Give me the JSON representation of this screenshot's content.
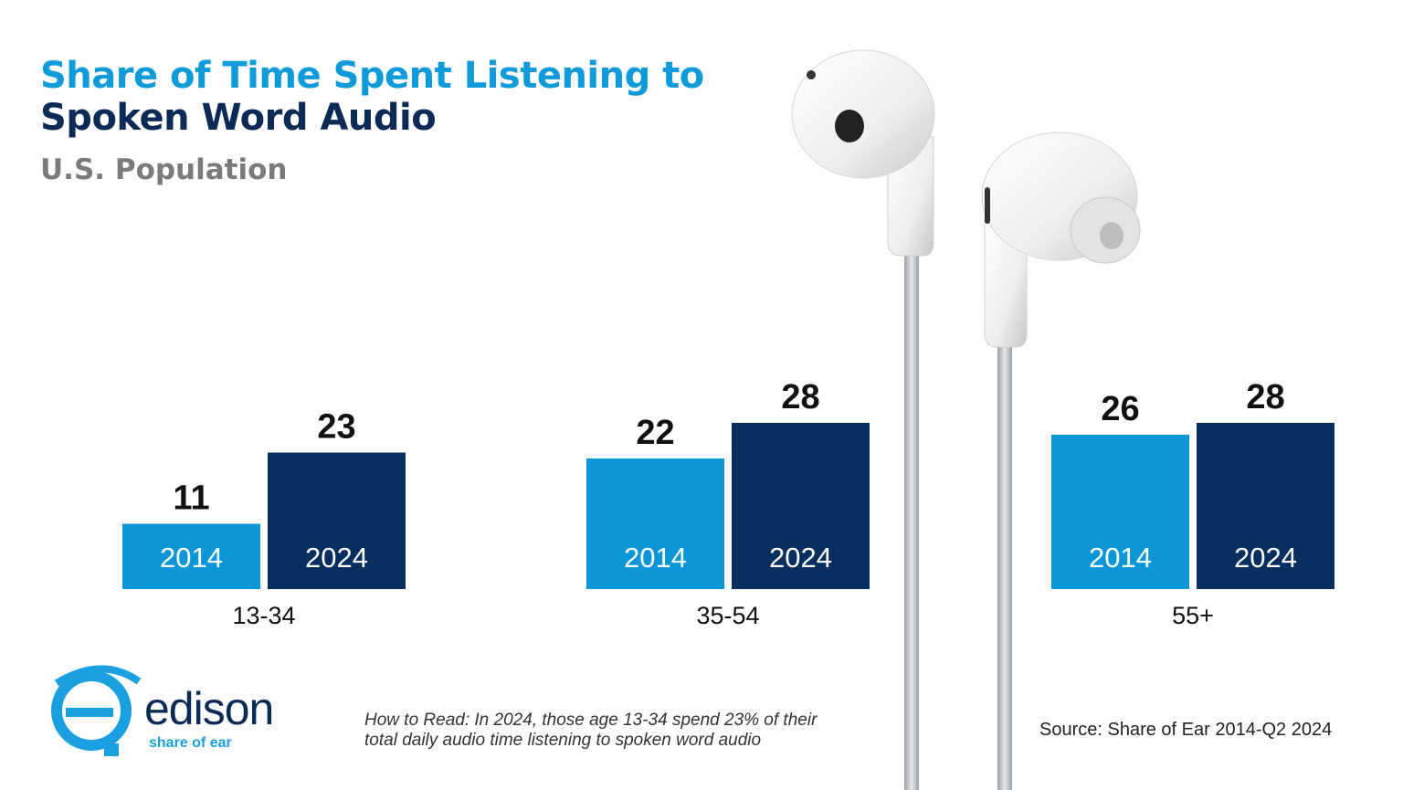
{
  "header": {
    "title_line1": "Share of Time Spent Listening to",
    "title_line2": "Spoken Word Audio",
    "subtitle": "U.S. Population"
  },
  "footer": {
    "how_to_read": "How to Read: In 2024, those age 13-34 spend 23% of their\ntotal daily audio time listening to spoken word audio",
    "source": "Source: Share of Ear 2014-Q2 2024"
  },
  "logo": {
    "wordmark": "edison",
    "tagline": "share of ear"
  },
  "colors": {
    "title_accent": "#0f9ad9",
    "title_dark": "#0b2a55",
    "bar_2014": "#0b96d8",
    "bar_2024": "#062e5f"
  },
  "chart_data": {
    "type": "bar",
    "categories": [
      "13-34",
      "35-54",
      "55+"
    ],
    "series": [
      {
        "name": "2014",
        "values": [
          11,
          22,
          26
        ]
      },
      {
        "name": "2024",
        "values": [
          23,
          28,
          28
        ]
      }
    ],
    "title": "Share of Time Spent Listening to Spoken Word Audio",
    "subtitle": "U.S. Population",
    "xlabel": "",
    "ylabel": "",
    "ylim": [
      0,
      28
    ],
    "grid": false,
    "legend": "none"
  }
}
